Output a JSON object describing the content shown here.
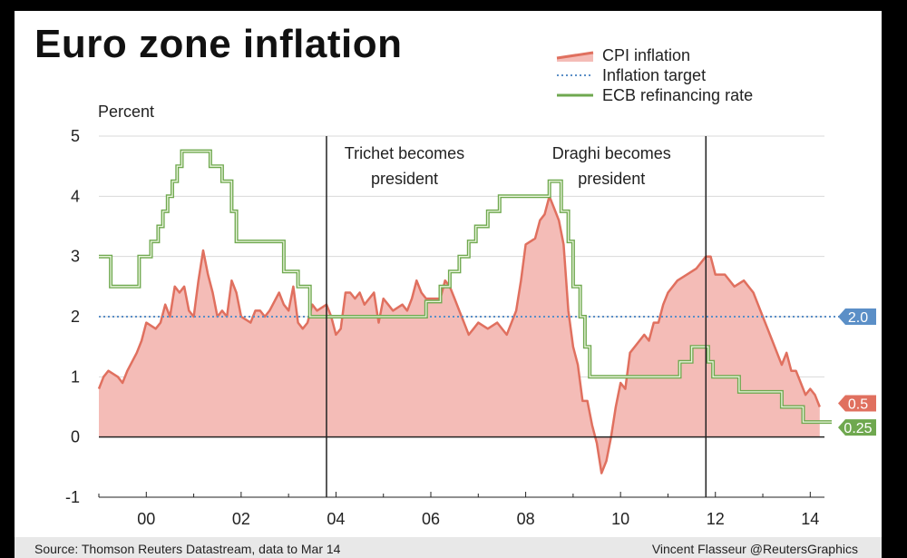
{
  "footer": {
    "source": "Source: Thomson Reuters Datastream, data to Mar 14",
    "credit": "Vincent Flasseur @ReutersGraphics"
  },
  "colors": {
    "cpi_line": "#e0705f",
    "cpi_fill": "#f4bcb7",
    "target": "#5b8fc7",
    "ecb": "#6fa84f",
    "grid": "#d9d9d9",
    "axis": "#222222"
  },
  "chart_data": {
    "type": "line",
    "title": "Euro zone inflation",
    "ylabel": "Percent",
    "xlabel": "",
    "ylim": [
      -1,
      5
    ],
    "yticks": [
      "5",
      "4",
      "3",
      "2",
      "1",
      "0",
      "-1"
    ],
    "ytick_values": [
      5,
      4,
      3,
      2,
      1,
      0,
      -1
    ],
    "xlim": [
      1999.0,
      2014.3
    ],
    "xticks": [
      "00",
      "02",
      "04",
      "06",
      "08",
      "10",
      "12",
      "14"
    ],
    "xtick_values": [
      2000,
      2002,
      2004,
      2006,
      2008,
      2010,
      2012,
      2014
    ],
    "grid": "horizontal",
    "legend": "top-right",
    "series": [
      {
        "name": "CPI inflation",
        "type": "area",
        "x": [
          1999.0,
          1999.1,
          1999.2,
          1999.4,
          1999.5,
          1999.6,
          1999.8,
          1999.9,
          2000.0,
          2000.2,
          2000.3,
          2000.4,
          2000.5,
          2000.6,
          2000.7,
          2000.8,
          2000.9,
          2001.0,
          2001.1,
          2001.2,
          2001.3,
          2001.4,
          2001.5,
          2001.6,
          2001.7,
          2001.8,
          2001.9,
          2002.0,
          2002.2,
          2002.3,
          2002.4,
          2002.5,
          2002.6,
          2002.8,
          2002.9,
          2003.0,
          2003.1,
          2003.2,
          2003.3,
          2003.4,
          2003.5,
          2003.6,
          2003.8,
          2003.9,
          2004.0,
          2004.1,
          2004.2,
          2004.3,
          2004.4,
          2004.5,
          2004.6,
          2004.8,
          2004.9,
          2005.0,
          2005.1,
          2005.2,
          2005.4,
          2005.5,
          2005.6,
          2005.7,
          2005.8,
          2005.9,
          2006.0,
          2006.2,
          2006.3,
          2006.4,
          2006.5,
          2006.6,
          2006.7,
          2006.8,
          2006.9,
          2007.0,
          2007.2,
          2007.4,
          2007.6,
          2007.8,
          2007.9,
          2008.0,
          2008.2,
          2008.3,
          2008.4,
          2008.5,
          2008.6,
          2008.7,
          2008.8,
          2008.9,
          2009.0,
          2009.1,
          2009.2,
          2009.3,
          2009.4,
          2009.5,
          2009.6,
          2009.7,
          2009.8,
          2009.9,
          2010.0,
          2010.1,
          2010.2,
          2010.4,
          2010.5,
          2010.6,
          2010.7,
          2010.8,
          2010.9,
          2011.0,
          2011.2,
          2011.4,
          2011.6,
          2011.8,
          2011.9,
          2012.0,
          2012.2,
          2012.4,
          2012.6,
          2012.8,
          2012.9,
          2013.0,
          2013.1,
          2013.2,
          2013.4,
          2013.5,
          2013.6,
          2013.7,
          2013.8,
          2013.9,
          2014.0,
          2014.1,
          2014.2
        ],
        "values": [
          0.8,
          1.0,
          1.1,
          1.0,
          0.9,
          1.1,
          1.4,
          1.6,
          1.9,
          1.8,
          1.9,
          2.2,
          2.0,
          2.5,
          2.4,
          2.5,
          2.1,
          2.0,
          2.6,
          3.1,
          2.7,
          2.4,
          2.0,
          2.1,
          2.0,
          2.6,
          2.4,
          2.0,
          1.9,
          2.1,
          2.1,
          2.0,
          2.1,
          2.4,
          2.2,
          2.1,
          2.5,
          1.9,
          1.8,
          1.9,
          2.2,
          2.1,
          2.2,
          2.0,
          1.7,
          1.8,
          2.4,
          2.4,
          2.3,
          2.4,
          2.2,
          2.4,
          1.9,
          2.3,
          2.2,
          2.1,
          2.2,
          2.1,
          2.3,
          2.6,
          2.4,
          2.3,
          2.3,
          2.3,
          2.6,
          2.5,
          2.3,
          2.1,
          1.9,
          1.7,
          1.8,
          1.9,
          1.8,
          1.9,
          1.7,
          2.1,
          2.6,
          3.2,
          3.3,
          3.6,
          3.7,
          4.0,
          3.8,
          3.6,
          3.2,
          2.1,
          1.5,
          1.2,
          0.6,
          0.6,
          0.2,
          -0.1,
          -0.6,
          -0.4,
          0.0,
          0.5,
          0.9,
          0.8,
          1.4,
          1.6,
          1.7,
          1.6,
          1.9,
          1.9,
          2.2,
          2.4,
          2.6,
          2.7,
          2.8,
          3.0,
          3.0,
          2.7,
          2.7,
          2.5,
          2.6,
          2.4,
          2.2,
          2.0,
          1.8,
          1.6,
          1.2,
          1.4,
          1.1,
          1.1,
          0.9,
          0.7,
          0.8,
          0.7,
          0.5
        ]
      },
      {
        "name": "Inflation target",
        "type": "dotted",
        "values": [
          2.0,
          2.0
        ]
      },
      {
        "name": "ECB refinancing rate",
        "type": "step",
        "x": [
          1999.0,
          1999.25,
          1999.85,
          2000.1,
          2000.25,
          2000.35,
          2000.45,
          2000.55,
          2000.65,
          2000.75,
          2000.8,
          2001.35,
          2001.6,
          2001.8,
          2001.9,
          2002.9,
          2003.2,
          2003.45,
          2005.9,
          2006.2,
          2006.4,
          2006.6,
          2006.8,
          2006.95,
          2007.2,
          2007.45,
          2008.5,
          2008.75,
          2008.9,
          2009.0,
          2009.15,
          2009.25,
          2009.35,
          2011.25,
          2011.5,
          2011.85,
          2011.95,
          2012.5,
          2013.4,
          2013.85
        ],
        "values": [
          3.0,
          2.5,
          3.0,
          3.25,
          3.5,
          3.75,
          4.0,
          4.25,
          4.5,
          4.75,
          4.75,
          4.5,
          4.25,
          3.75,
          3.25,
          2.75,
          2.5,
          2.0,
          2.25,
          2.5,
          2.75,
          3.0,
          3.25,
          3.5,
          3.75,
          4.0,
          4.25,
          3.75,
          3.25,
          2.5,
          2.0,
          1.5,
          1.0,
          1.25,
          1.5,
          1.25,
          1.0,
          0.75,
          0.5,
          0.25
        ]
      }
    ],
    "annotations": [
      {
        "x": 2003.8,
        "label_lines": [
          "Trichet becomes",
          "president"
        ]
      },
      {
        "x": 2011.8,
        "label_lines": [
          "Draghi becomes",
          "president"
        ]
      }
    ],
    "end_labels": [
      {
        "series": "Inflation target",
        "text": "2.0",
        "value": 2.0,
        "color": "#5b8fc7"
      },
      {
        "series": "CPI inflation",
        "text": "0.5",
        "value": 0.5,
        "color": "#e0705f"
      },
      {
        "series": "ECB refinancing rate",
        "text": "0.25",
        "value": 0.25,
        "color": "#6fa84f"
      }
    ]
  }
}
